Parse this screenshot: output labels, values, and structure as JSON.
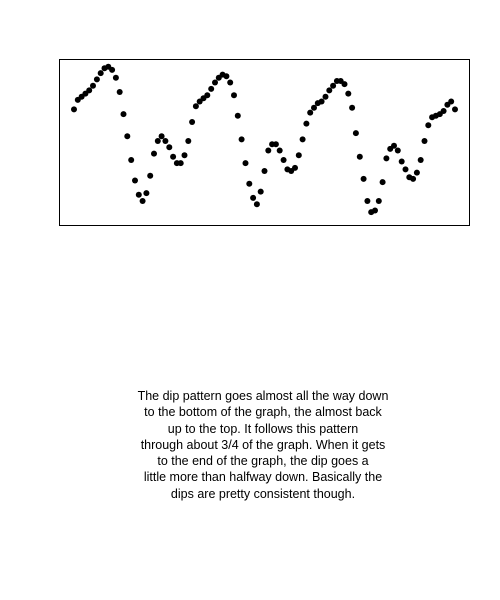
{
  "chart_data": {
    "type": "scatter",
    "title": "",
    "xlabel": "",
    "ylabel": "",
    "axes_visible": false,
    "frame": true,
    "grid": false,
    "xlim": [
      0,
      100
    ],
    "ylim": [
      0,
      1
    ],
    "marker_color": "#000000",
    "x": [
      0,
      1,
      2,
      3,
      4,
      5,
      6,
      7,
      8,
      9,
      10,
      11,
      12,
      13,
      14,
      15,
      16,
      17,
      18,
      19,
      20,
      21,
      22,
      23,
      24,
      25,
      26,
      27,
      28,
      29,
      30,
      31,
      32,
      33,
      34,
      35,
      36,
      37,
      38,
      39,
      40,
      41,
      42,
      43,
      44,
      45,
      46,
      47,
      48,
      49,
      50,
      51,
      52,
      53,
      54,
      55,
      56,
      57,
      58,
      59,
      60,
      61,
      62,
      63,
      64,
      65,
      66,
      67,
      68,
      69,
      70,
      71,
      72,
      73,
      74,
      75,
      76,
      77,
      78,
      79,
      80,
      81,
      82,
      83,
      84,
      85,
      86,
      87,
      88,
      89,
      90,
      91,
      92,
      93,
      94,
      95,
      96,
      97,
      98,
      99,
      100
    ],
    "y": [
      0.7,
      0.76,
      0.78,
      0.8,
      0.82,
      0.85,
      0.89,
      0.93,
      0.96,
      0.97,
      0.95,
      0.9,
      0.81,
      0.67,
      0.53,
      0.38,
      0.25,
      0.16,
      0.12,
      0.17,
      0.28,
      0.42,
      0.5,
      0.53,
      0.5,
      0.46,
      0.4,
      0.36,
      0.36,
      0.41,
      0.5,
      0.62,
      0.72,
      0.75,
      0.77,
      0.79,
      0.83,
      0.87,
      0.9,
      0.92,
      0.91,
      0.87,
      0.79,
      0.66,
      0.51,
      0.36,
      0.23,
      0.14,
      0.1,
      0.18,
      0.31,
      0.44,
      0.48,
      0.48,
      0.44,
      0.38,
      0.32,
      0.31,
      0.33,
      0.41,
      0.51,
      0.61,
      0.68,
      0.71,
      0.74,
      0.75,
      0.78,
      0.82,
      0.85,
      0.88,
      0.88,
      0.86,
      0.8,
      0.71,
      0.55,
      0.4,
      0.26,
      0.12,
      0.05,
      0.06,
      0.12,
      0.24,
      0.39,
      0.45,
      0.47,
      0.44,
      0.37,
      0.32,
      0.27,
      0.26,
      0.3,
      0.38,
      0.5,
      0.6,
      0.65,
      0.66,
      0.67,
      0.69,
      0.73,
      0.75,
      0.7
    ]
  },
  "caption": {
    "lines": [
      "The dip pattern goes almost all the way down",
      "to the bottom of the graph, the almost back",
      "up to the top. It follows this pattern",
      "through about 3/4 of the graph. When it gets",
      "to the end of the graph, the dip goes a",
      "little more than halfway down. Basically the",
      "dips are pretty consistent though."
    ]
  }
}
